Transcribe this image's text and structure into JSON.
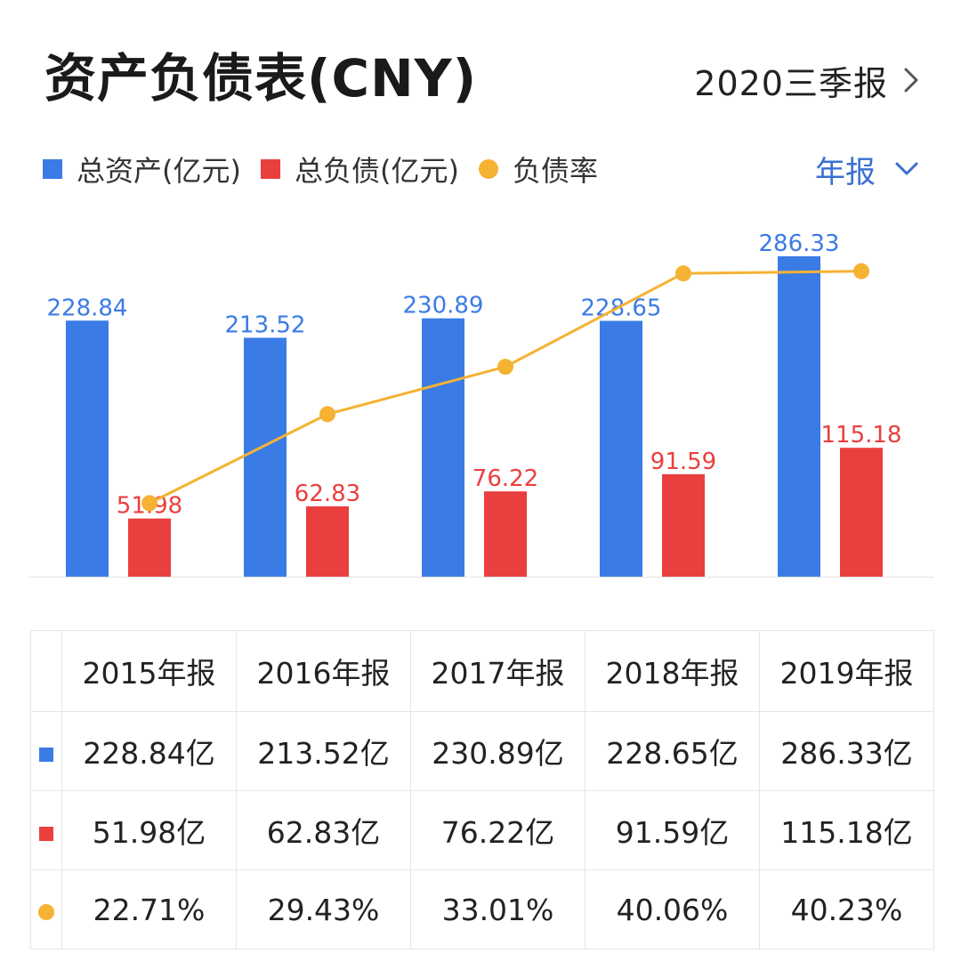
{
  "header": {
    "title": "资产负债表(CNY)",
    "period_label": "2020三季报",
    "period_icon": "chevron-right-icon"
  },
  "legend": {
    "items": [
      {
        "label": "总资产(亿元)",
        "color": "#3b7be6",
        "shape": "square"
      },
      {
        "label": "总负债(亿元)",
        "color": "#ea3f3f",
        "shape": "square"
      },
      {
        "label": "负债率",
        "color": "#f5b233",
        "shape": "dot"
      }
    ]
  },
  "type_select": {
    "label": "年报",
    "icon": "chevron-down-icon"
  },
  "colors": {
    "assets": "#3b7be6",
    "liabilities": "#ea3f3f",
    "ratio": "#f5b233",
    "type_label": "#3a6fd0"
  },
  "chart_data": {
    "type": "bar",
    "categories": [
      "2015年报",
      "2016年报",
      "2017年报",
      "2018年报",
      "2019年报"
    ],
    "series": [
      {
        "name": "总资产(亿元)",
        "type": "bar",
        "values": [
          228.84,
          213.52,
          230.89,
          228.65,
          286.33
        ],
        "labels": [
          "228.84",
          "213.52",
          "230.89",
          "228.65",
          "286.33"
        ]
      },
      {
        "name": "总负债(亿元)",
        "type": "bar",
        "values": [
          51.98,
          62.83,
          76.22,
          91.59,
          115.18
        ],
        "labels": [
          "51.98",
          "62.83",
          "76.22",
          "91.59",
          "115.18"
        ]
      },
      {
        "name": "负债率",
        "type": "line",
        "unit": "%",
        "values": [
          22.71,
          29.43,
          33.01,
          40.06,
          40.23
        ]
      }
    ],
    "ylim_bars": [
      0,
      286.33
    ],
    "legend_position": "top-left",
    "grid": false
  },
  "table": {
    "headers": [
      "2015年报",
      "2016年报",
      "2017年报",
      "2018年报",
      "2019年报"
    ],
    "rows": [
      {
        "marker": "square",
        "color": "#3b7be6",
        "cells": [
          "228.84亿",
          "213.52亿",
          "230.89亿",
          "228.65亿",
          "286.33亿"
        ]
      },
      {
        "marker": "square",
        "color": "#ea3f3f",
        "cells": [
          "51.98亿",
          "62.83亿",
          "76.22亿",
          "91.59亿",
          "115.18亿"
        ]
      },
      {
        "marker": "dot",
        "color": "#f5b233",
        "cells": [
          "22.71%",
          "29.43%",
          "33.01%",
          "40.06%",
          "40.23%"
        ]
      }
    ]
  }
}
